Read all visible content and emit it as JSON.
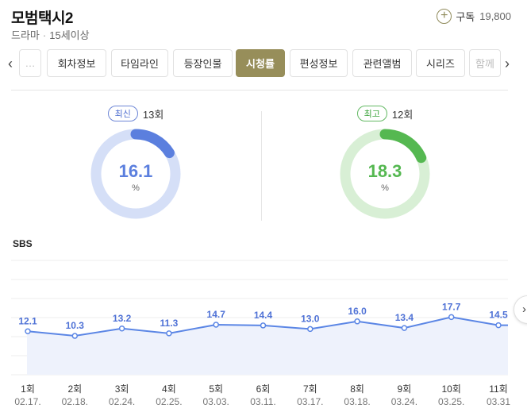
{
  "header": {
    "title": "모범택시2",
    "genre": "드라마",
    "separator": "·",
    "rating": "15세이상",
    "subscribe_label": "구독",
    "subscribe_count": "19,800"
  },
  "tabs": [
    {
      "label": "…",
      "active": false
    },
    {
      "label": "회차정보",
      "active": false
    },
    {
      "label": "타임라인",
      "active": false
    },
    {
      "label": "등장인물",
      "active": false
    },
    {
      "label": "시청률",
      "active": true
    },
    {
      "label": "편성정보",
      "active": false
    },
    {
      "label": "관련앨범",
      "active": false
    },
    {
      "label": "시리즈",
      "active": false
    },
    {
      "label": "함께",
      "active": false
    }
  ],
  "nav": {
    "prev": "‹",
    "next": "›"
  },
  "stats": {
    "latest": {
      "badge": "최신",
      "episode": "13회",
      "value": "16.1",
      "unit": "%",
      "fraction": 0.161,
      "color": "#5b7fde",
      "track": "#d5dff7"
    },
    "best": {
      "badge": "최고",
      "episode": "12회",
      "value": "18.3",
      "unit": "%",
      "fraction": 0.183,
      "color": "#55b851",
      "track": "#d8efd5"
    }
  },
  "broadcaster": "SBS",
  "chart_data": {
    "type": "line",
    "title": "",
    "xlabel": "",
    "ylabel": "",
    "categories": [
      "1회",
      "2회",
      "3회",
      "4회",
      "5회",
      "6회",
      "7회",
      "8회",
      "9회",
      "10회",
      "11회"
    ],
    "dates": [
      "02.17.",
      "02.18.",
      "02.24.",
      "02.25.",
      "03.03.",
      "03.11.",
      "03.17.",
      "03.18.",
      "03.24.",
      "03.25.",
      "03.31"
    ],
    "series": [
      {
        "values": [
          12.1,
          10.3,
          13.2,
          11.3,
          14.7,
          14.4,
          13.0,
          16.0,
          13.4,
          17.7,
          14.5
        ]
      }
    ],
    "ylim": [
      -5,
      40
    ],
    "grid": true,
    "colors": {
      "line": "#5b86e5",
      "area": "#eef2fc",
      "label": "#4f72d6",
      "grid": "#ececec"
    }
  },
  "edge_button": "›"
}
